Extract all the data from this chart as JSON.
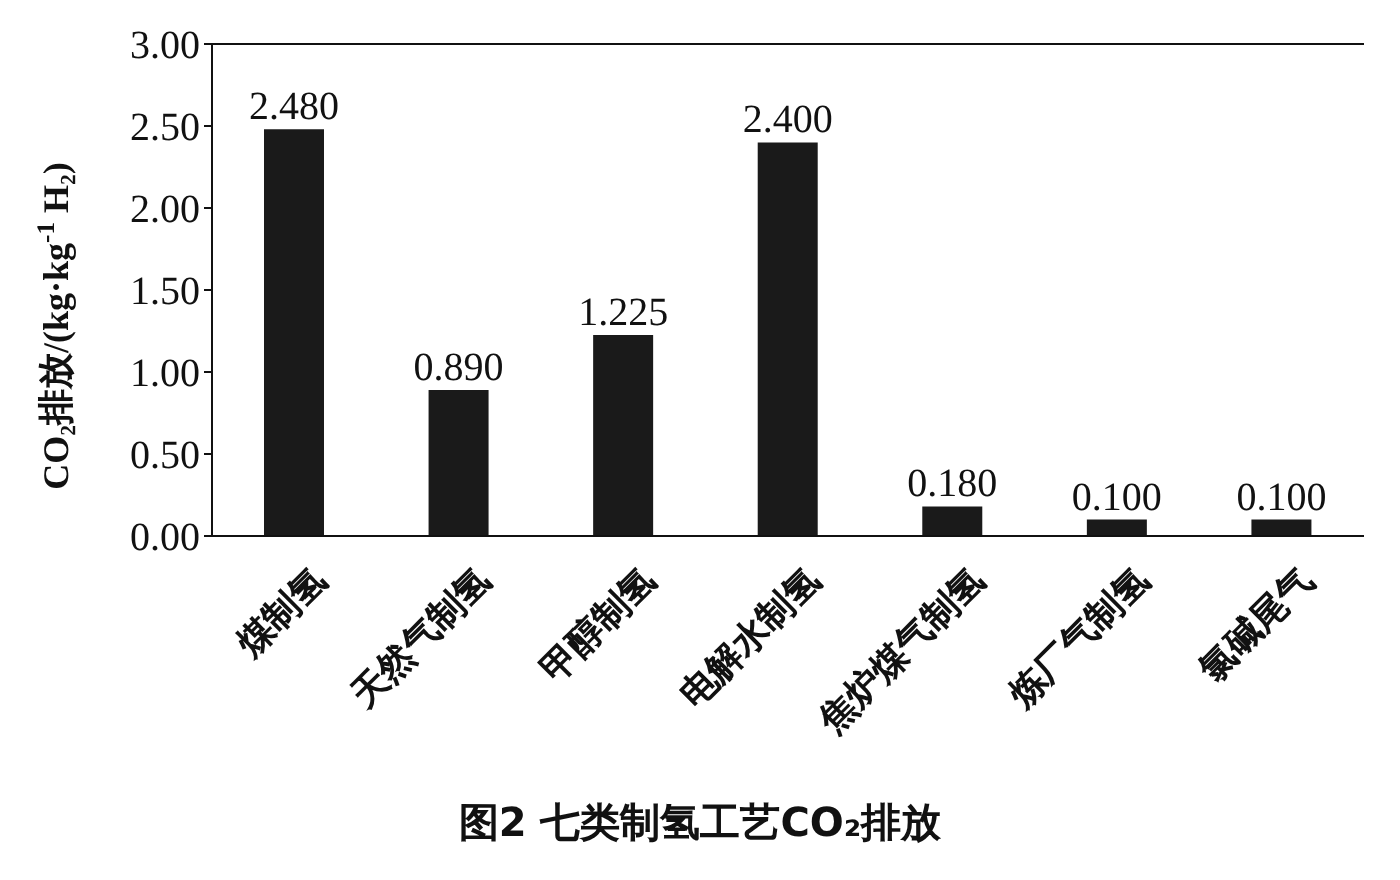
{
  "chart_data": {
    "type": "bar",
    "title": "图2 七类制氢工艺CO₂排放",
    "ylabel": "CO₂排放/(kg·kg$^{-1}$ H₂)",
    "categories": [
      "煤制氢",
      "天然气制氢",
      "甲醇制氢",
      "电解水制氢",
      "焦炉煤气制氢",
      "炼厂气制氢",
      "氯碱尾气"
    ],
    "values": [
      2.48,
      0.89,
      1.225,
      2.4,
      0.18,
      0.1,
      0.1
    ],
    "value_labels": [
      "2.480",
      "0.890",
      "1.225",
      "2.400",
      "0.180",
      "0.100",
      "0.100"
    ],
    "color": "#1a1a1a",
    "ylim": [
      0,
      3
    ],
    "yticks": [
      {
        "value": 0,
        "label": "0.00"
      },
      {
        "value": 0.5,
        "label": "0.50"
      },
      {
        "value": 1,
        "label": "1.00"
      },
      {
        "value": 1.5,
        "label": "1.50"
      },
      {
        "value": 2,
        "label": "2.00"
      },
      {
        "value": 2.5,
        "label": "2.50"
      },
      {
        "value": 3,
        "label": "3.00"
      }
    ],
    "grid": false,
    "legend": false
  }
}
